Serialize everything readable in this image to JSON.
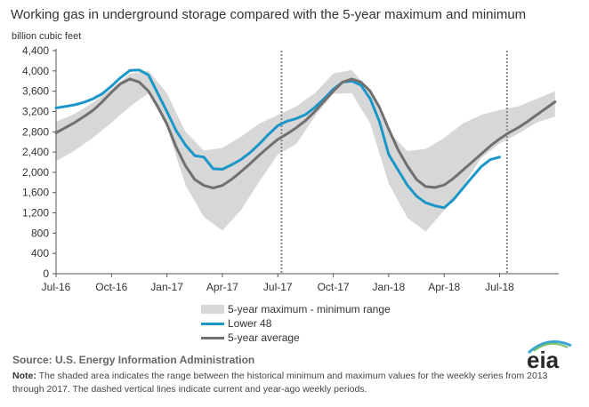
{
  "header": {
    "title": "Working gas in underground storage compared with the 5-year maximum and minimum",
    "units": "billion cubic feet"
  },
  "legend": {
    "band": "5-year maximum - minimum range",
    "lower48": "Lower 48",
    "avg": "5-year average"
  },
  "source": "Source:  U.S. Energy Information Administration",
  "note": {
    "label": "Note:",
    "text": " The shaded area indicates the range between the historical minimum and maximum values for the weekly series from 2013 through 2017. The dashed vertical lines indicate current and year-ago weekly periods."
  },
  "logo": {
    "text": "eia"
  },
  "colors": {
    "band": "#d7d7d7",
    "lower48": "#1a96c8",
    "avg": "#707070",
    "dashed": "#888888",
    "axis": "#555555",
    "logo_arc": "#3aa6d0"
  },
  "chart_data": {
    "type": "area",
    "x_axis": {
      "ticks": [
        "Jul-16",
        "Oct-16",
        "Jan-17",
        "Apr-17",
        "Jul-17",
        "Oct-17",
        "Jan-18",
        "Apr-18",
        "Jul-18"
      ],
      "tick_months": [
        0,
        3,
        6,
        9,
        12,
        15,
        18,
        21,
        24
      ],
      "range_months": [
        0,
        27.2
      ]
    },
    "y_axis": {
      "ticks": [
        "0",
        "400",
        "800",
        "1,200",
        "1,600",
        "2,000",
        "2,400",
        "2,800",
        "3,200",
        "3,600",
        "4,000",
        "4,400"
      ],
      "range": [
        0,
        4400
      ]
    },
    "series": [
      {
        "name": "5-year maximum - minimum range",
        "kind": "band",
        "x": [
          0,
          1,
          2,
          3,
          4,
          5,
          6,
          7,
          8,
          9,
          10,
          11,
          12,
          13,
          14,
          15,
          16,
          17,
          18,
          19,
          20,
          21,
          22,
          23,
          24,
          25,
          26,
          27
        ],
        "max": [
          3000,
          3150,
          3380,
          3650,
          3950,
          4000,
          3560,
          2800,
          2430,
          2480,
          2700,
          2960,
          3130,
          3300,
          3560,
          3950,
          4020,
          3600,
          2800,
          2420,
          2460,
          2680,
          2960,
          3130,
          3230,
          3300,
          3450,
          3600
        ],
        "min": [
          2220,
          2430,
          2680,
          2980,
          3300,
          3560,
          2900,
          1750,
          1120,
          850,
          1250,
          1820,
          2350,
          2560,
          3100,
          3550,
          3560,
          2960,
          1780,
          1110,
          830,
          1250,
          1720,
          2280,
          2570,
          2760,
          2980,
          3100
        ]
      },
      {
        "name": "Lower 48",
        "kind": "line",
        "x": [
          0,
          0.5,
          1,
          1.5,
          2,
          2.5,
          3,
          3.5,
          4,
          4.5,
          5,
          5.5,
          6,
          6.5,
          7,
          7.5,
          8,
          8.5,
          9,
          9.5,
          10,
          10.5,
          11,
          11.5,
          12,
          12.5,
          13,
          13.5,
          14,
          14.5,
          15,
          15.5,
          16,
          16.5,
          17,
          17.5,
          18,
          18.5,
          19,
          19.5,
          20,
          20.5,
          21,
          21.5,
          22,
          22.5,
          23,
          23.5,
          24
        ],
        "values": [
          3270,
          3300,
          3330,
          3380,
          3450,
          3550,
          3700,
          3870,
          4010,
          4020,
          3920,
          3560,
          3200,
          2820,
          2540,
          2330,
          2300,
          2070,
          2060,
          2150,
          2250,
          2390,
          2560,
          2750,
          2920,
          3010,
          3060,
          3140,
          3280,
          3450,
          3640,
          3780,
          3800,
          3720,
          3450,
          3000,
          2350,
          2050,
          1750,
          1530,
          1400,
          1340,
          1300,
          1460,
          1680,
          1900,
          2110,
          2250,
          2300
        ]
      },
      {
        "name": "5-year average",
        "kind": "line",
        "x": [
          0,
          0.5,
          1,
          1.5,
          2,
          2.5,
          3,
          3.5,
          4,
          4.5,
          5,
          5.5,
          6,
          6.5,
          7,
          7.5,
          8,
          8.5,
          9,
          9.5,
          10,
          10.5,
          11,
          11.5,
          12,
          12.5,
          13,
          13.5,
          14,
          14.5,
          15,
          15.5,
          16,
          16.5,
          17,
          17.5,
          18,
          18.5,
          19,
          19.5,
          20,
          20.5,
          21,
          21.5,
          22,
          22.5,
          23,
          23.5,
          24,
          24.5,
          25,
          25.5,
          26,
          26.5,
          27
        ],
        "values": [
          2780,
          2880,
          2980,
          3100,
          3220,
          3390,
          3580,
          3750,
          3840,
          3780,
          3600,
          3300,
          2950,
          2500,
          2130,
          1860,
          1740,
          1690,
          1740,
          1860,
          2010,
          2170,
          2340,
          2500,
          2650,
          2760,
          2880,
          3020,
          3200,
          3400,
          3600,
          3780,
          3840,
          3780,
          3600,
          3280,
          2850,
          2450,
          2130,
          1860,
          1720,
          1700,
          1750,
          1880,
          2040,
          2200,
          2360,
          2520,
          2660,
          2780,
          2880,
          3000,
          3130,
          3260,
          3390
        ]
      }
    ],
    "dashed_vertical_lines_months": [
      12.2,
      24.4
    ]
  }
}
